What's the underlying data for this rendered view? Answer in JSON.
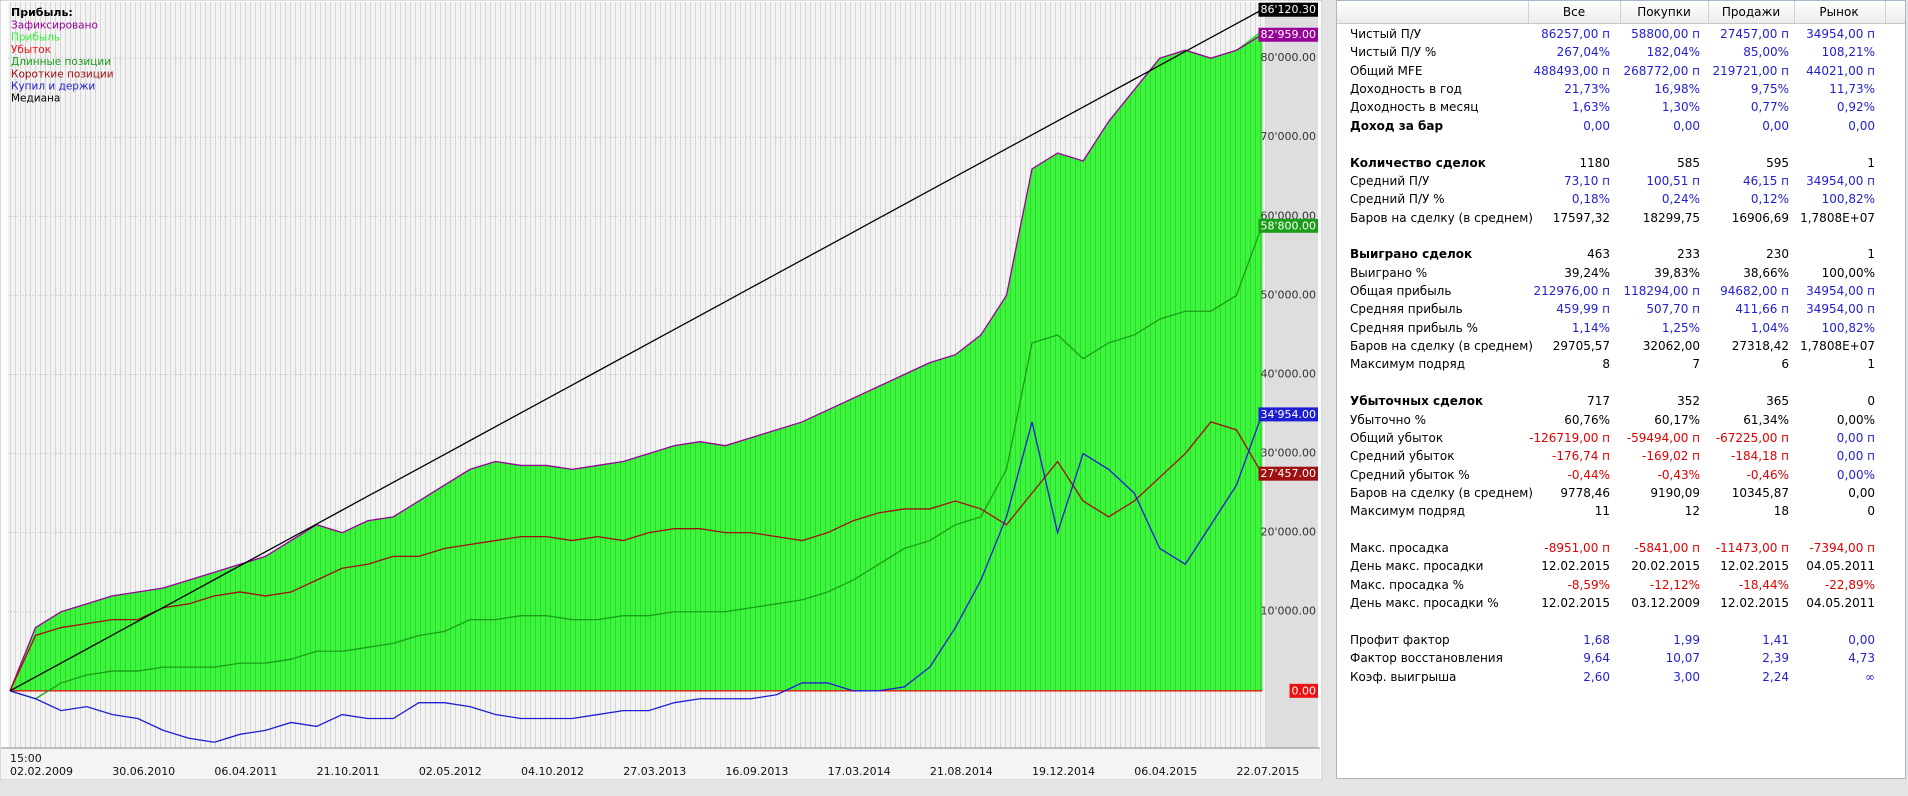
{
  "chart_data": {
    "type": "line",
    "legend_title": "Прибыль:",
    "time_label": "15:00",
    "categories": [
      "02.02.2009",
      null,
      null,
      null,
      "30.06.2010",
      null,
      null,
      null,
      "06.04.2011",
      null,
      null,
      null,
      "21.10.2011",
      null,
      null,
      null,
      "02.05.2012",
      null,
      null,
      null,
      "04.10.2012",
      null,
      null,
      null,
      "27.03.2013",
      null,
      null,
      null,
      "16.09.2013",
      null,
      null,
      null,
      "17.03.2014",
      null,
      null,
      null,
      "21.08.2014",
      null,
      null,
      null,
      "19.12.2014",
      null,
      null,
      null,
      "06.04.2015",
      null,
      null,
      null,
      "22.07.2015",
      null
    ],
    "ylim": [
      -7230,
      87100
    ],
    "yticks": [
      {
        "value": 10000,
        "label": "10'000.00"
      },
      {
        "value": 20000,
        "label": "20'000.00"
      },
      {
        "value": 30000,
        "label": "30'000.00"
      },
      {
        "value": 40000,
        "label": "40'000.00"
      },
      {
        "value": 50000,
        "label": "50'000.00"
      },
      {
        "value": 60000,
        "label": "60'000.00"
      },
      {
        "value": 70000,
        "label": "70'000.00"
      },
      {
        "value": 80000,
        "label": "80'000.00"
      }
    ],
    "grid": true,
    "series": [
      {
        "name": "Зафиксировано",
        "color": "#990099",
        "kind": "line",
        "end_label": "82'959.00",
        "values": [
          0,
          8000,
          10000,
          11000,
          12000,
          12500,
          13000,
          14000,
          15000,
          16000,
          17000,
          19000,
          21000,
          20000,
          21500,
          22000,
          24000,
          26000,
          28000,
          29000,
          28500,
          28500,
          28000,
          28500,
          29000,
          30000,
          31000,
          31500,
          31000,
          32000,
          33000,
          34000,
          35500,
          37000,
          38500,
          40000,
          41500,
          42500,
          45000,
          50000,
          66000,
          68000,
          67000,
          72000,
          76000,
          80000,
          81000,
          80000,
          81000,
          82959
        ]
      },
      {
        "name": "Прибыль",
        "color": "#33ff33",
        "kind": "area",
        "values": [
          0,
          8000,
          10000,
          11000,
          12000,
          12500,
          13000,
          14000,
          15000,
          16000,
          17000,
          19000,
          21000,
          20000,
          21500,
          22000,
          24000,
          26000,
          28000,
          29000,
          28500,
          28500,
          28000,
          28500,
          29000,
          30000,
          31000,
          31500,
          31000,
          32000,
          33000,
          34000,
          35500,
          37000,
          38500,
          40000,
          41500,
          42500,
          45000,
          50000,
          66000,
          68000,
          67000,
          72000,
          76000,
          80000,
          81000,
          80000,
          81000,
          83500
        ]
      },
      {
        "name": "Убыток",
        "color": "#ee1111",
        "kind": "line",
        "end_label": "0.00",
        "values": [
          0,
          0,
          0,
          0,
          0,
          0,
          0,
          0,
          0,
          0,
          0,
          0,
          0,
          0,
          0,
          0,
          0,
          0,
          0,
          0,
          0,
          0,
          0,
          0,
          0,
          0,
          0,
          0,
          0,
          0,
          0,
          0,
          0,
          0,
          0,
          0,
          0,
          0,
          0,
          0,
          0,
          0,
          0,
          0,
          0,
          0,
          0,
          0,
          0,
          0
        ]
      },
      {
        "name": "Длинные позиции",
        "color": "#1a9e1a",
        "kind": "line",
        "end_label": "58'800.00",
        "values": [
          0,
          -1000,
          1000,
          2000,
          2500,
          2500,
          3000,
          3000,
          3000,
          3500,
          3500,
          4000,
          5000,
          5000,
          5500,
          6000,
          7000,
          7500,
          9000,
          9000,
          9500,
          9500,
          9000,
          9000,
          9500,
          9500,
          10000,
          10000,
          10000,
          10500,
          11000,
          11500,
          12500,
          14000,
          16000,
          18000,
          19000,
          21000,
          22000,
          28000,
          44000,
          45000,
          42000,
          44000,
          45000,
          47000,
          48000,
          48000,
          50000,
          58800
        ]
      },
      {
        "name": "Короткие позиции",
        "color": "#a01010",
        "kind": "line",
        "end_label": "27'457.00",
        "values": [
          0,
          7000,
          8000,
          8500,
          9000,
          9000,
          10500,
          11000,
          12000,
          12500,
          12000,
          12500,
          14000,
          15500,
          16000,
          17000,
          17000,
          18000,
          18500,
          19000,
          19500,
          19500,
          19000,
          19500,
          19000,
          20000,
          20500,
          20500,
          20000,
          20000,
          19500,
          19000,
          20000,
          21500,
          22500,
          23000,
          23000,
          24000,
          23000,
          21000,
          25000,
          29000,
          24000,
          22000,
          24000,
          27000,
          30000,
          34000,
          33000,
          27457
        ]
      },
      {
        "name": "Купил и держи",
        "color": "#1e1ed2",
        "kind": "line",
        "end_label": "34'954.00",
        "values": [
          0,
          -1000,
          -2500,
          -2000,
          -3000,
          -3500,
          -5000,
          -6000,
          -6500,
          -5500,
          -5000,
          -4000,
          -4500,
          -3000,
          -3500,
          -3500,
          -1500,
          -1500,
          -2000,
          -3000,
          -3500,
          -3500,
          -3500,
          -3000,
          -2500,
          -2500,
          -1500,
          -1000,
          -1000,
          -1000,
          -500,
          1000,
          1000,
          0,
          0,
          500,
          3000,
          8000,
          14000,
          22000,
          34000,
          20000,
          30000,
          28000,
          25000,
          18000,
          16000,
          21000,
          26000,
          34954
        ]
      },
      {
        "name": "Медиана",
        "color": "#000000",
        "kind": "line",
        "end_label": "86'120.30",
        "values": [
          0,
          1758,
          3515,
          5273,
          7030,
          8788,
          10545,
          12303,
          14060,
          15818,
          17576,
          19333,
          21091,
          22848,
          24606,
          26363,
          28121,
          29878,
          31636,
          33394,
          35151,
          36909,
          38666,
          40424,
          42181,
          43939,
          45696,
          47454,
          49212,
          50969,
          52727,
          54484,
          56242,
          57999,
          59757,
          61514,
          63272,
          65030,
          66787,
          68545,
          70302,
          72060,
          73817,
          75575,
          77332,
          79090,
          80848,
          82605,
          84363,
          86120.3
        ]
      }
    ]
  },
  "table": {
    "header": [
      "Все",
      "Покупки",
      "Продажи",
      "Рынок"
    ],
    "palette": {
      "b": "#1f1fd0",
      "r": "#e00000",
      "k": "#000000"
    },
    "groups": [
      [
        {
          "label": "Чистый П/У",
          "cells": [
            "86257,00 п",
            "58800,00 п",
            "27457,00 п",
            "34954,00 п"
          ],
          "colors": "bbbb"
        },
        {
          "label": "Чистый П/У %",
          "cells": [
            "267,04%",
            "182,04%",
            "85,00%",
            "108,21%"
          ],
          "colors": "bbbb"
        },
        {
          "label": "Общий MFE",
          "cells": [
            "488493,00 п",
            "268772,00 п",
            "219721,00 п",
            "44021,00 п"
          ],
          "colors": "bbbb"
        },
        {
          "label": "Доходность в год",
          "cells": [
            "21,73%",
            "16,98%",
            "9,75%",
            "11,73%"
          ],
          "colors": "bbbb"
        },
        {
          "label": "Доходность в месяц",
          "cells": [
            "1,63%",
            "1,30%",
            "0,77%",
            "0,92%"
          ],
          "colors": "bbbb"
        },
        {
          "label": "Доход за бар",
          "cells": [
            "0,00",
            "0,00",
            "0,00",
            "0,00"
          ],
          "colors": "bbbb",
          "bold": true
        }
      ],
      [
        {
          "label": "Количество сделок",
          "cells": [
            "1180",
            "585",
            "595",
            "1"
          ],
          "colors": "kkkk",
          "bold": true
        },
        {
          "label": "Средний П/У",
          "cells": [
            "73,10 п",
            "100,51 п",
            "46,15 п",
            "34954,00 п"
          ],
          "colors": "bbbb"
        },
        {
          "label": "Средний П/У %",
          "cells": [
            "0,18%",
            "0,24%",
            "0,12%",
            "100,82%"
          ],
          "colors": "bbbb"
        },
        {
          "label": "Баров на сделку (в среднем)",
          "cells": [
            "17597,32",
            "18299,75",
            "16906,69",
            "1,7808E+07"
          ],
          "colors": "kkkk"
        }
      ],
      [
        {
          "label": "Выиграно сделок",
          "cells": [
            "463",
            "233",
            "230",
            "1"
          ],
          "colors": "kkkk",
          "bold": true
        },
        {
          "label": "Выиграно %",
          "cells": [
            "39,24%",
            "39,83%",
            "38,66%",
            "100,00%"
          ],
          "colors": "kkkk"
        },
        {
          "label": "Общая прибыль",
          "cells": [
            "212976,00 п",
            "118294,00 п",
            "94682,00 п",
            "34954,00 п"
          ],
          "colors": "bbbb"
        },
        {
          "label": "Средняя прибыль",
          "cells": [
            "459,99 п",
            "507,70 п",
            "411,66 п",
            "34954,00 п"
          ],
          "colors": "bbbb"
        },
        {
          "label": "Средняя прибыль %",
          "cells": [
            "1,14%",
            "1,25%",
            "1,04%",
            "100,82%"
          ],
          "colors": "bbbb"
        },
        {
          "label": "Баров на сделку (в среднем)",
          "cells": [
            "29705,57",
            "32062,00",
            "27318,42",
            "1,7808E+07"
          ],
          "colors": "kkkk"
        },
        {
          "label": "Максимум подряд",
          "cells": [
            "8",
            "7",
            "6",
            "1"
          ],
          "colors": "kkkk"
        }
      ],
      [
        {
          "label": "Убыточных сделок",
          "cells": [
            "717",
            "352",
            "365",
            "0"
          ],
          "colors": "kkkk",
          "bold": true
        },
        {
          "label": "Убыточно %",
          "cells": [
            "60,76%",
            "60,17%",
            "61,34%",
            "0,00%"
          ],
          "colors": "kkkk"
        },
        {
          "label": "Общий убыток",
          "cells": [
            "-126719,00 п",
            "-59494,00 п",
            "-67225,00 п",
            "0,00 п"
          ],
          "colors": "rrrb"
        },
        {
          "label": "Средний убыток",
          "cells": [
            "-176,74 п",
            "-169,02 п",
            "-184,18 п",
            "0,00 п"
          ],
          "colors": "rrrb"
        },
        {
          "label": "Средний убыток %",
          "cells": [
            "-0,44%",
            "-0,43%",
            "-0,46%",
            "0,00%"
          ],
          "colors": "rrrb"
        },
        {
          "label": "Баров на сделку (в среднем)",
          "cells": [
            "9778,46",
            "9190,09",
            "10345,87",
            "0,00"
          ],
          "colors": "kkkk"
        },
        {
          "label": "Максимум подряд",
          "cells": [
            "11",
            "12",
            "18",
            "0"
          ],
          "colors": "kkkk"
        }
      ],
      [
        {
          "label": "Макс. просадка",
          "cells": [
            "-8951,00 п",
            "-5841,00 п",
            "-11473,00 п",
            "-7394,00 п"
          ],
          "colors": "rrrr"
        },
        {
          "label": "День макс. просадки",
          "cells": [
            "12.02.2015",
            "20.02.2015",
            "12.02.2015",
            "04.05.2011"
          ],
          "colors": "kkkk"
        },
        {
          "label": "Макс. просадка %",
          "cells": [
            "-8,59%",
            "-12,12%",
            "-18,44%",
            "-22,89%"
          ],
          "colors": "rrrr"
        },
        {
          "label": "День макс. просадки %",
          "cells": [
            "12.02.2015",
            "03.12.2009",
            "12.02.2015",
            "04.05.2011"
          ],
          "colors": "kkkk"
        }
      ],
      [
        {
          "label": "Профит фактор",
          "cells": [
            "1,68",
            "1,99",
            "1,41",
            "0,00"
          ],
          "colors": "bbbb"
        },
        {
          "label": "Фактор восстановления",
          "cells": [
            "9,64",
            "10,07",
            "2,39",
            "4,73"
          ],
          "colors": "bbbb"
        },
        {
          "label": "Коэф. выигрыша",
          "cells": [
            "2,60",
            "3,00",
            "2,24",
            "∞"
          ],
          "colors": "bbbb"
        }
      ]
    ]
  }
}
